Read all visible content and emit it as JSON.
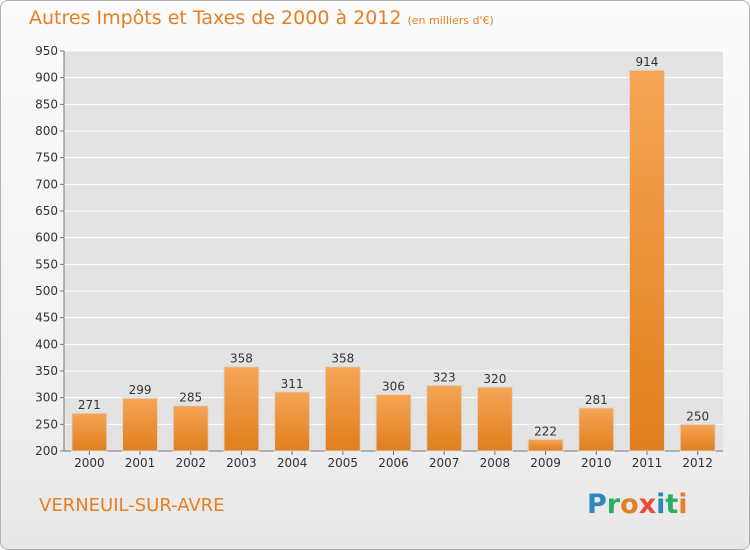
{
  "title": "Autres Impôts et Taxes de 2000 à 2012",
  "subtitle": "(en milliers d'€)",
  "place": "VERNEUIL-SUR-AVRE",
  "logo": {
    "text": "Proxiti",
    "letters": [
      {
        "ch": "P",
        "color": "#2e86c1"
      },
      {
        "ch": "r",
        "color": "#27ae60"
      },
      {
        "ch": "o",
        "color": "#e67e22"
      },
      {
        "ch": "x",
        "color": "#e74c3c"
      },
      {
        "ch": "i",
        "color": "#2e86c1"
      },
      {
        "ch": "t",
        "color": "#27ae60"
      },
      {
        "ch": "i",
        "color": "#e67e22"
      }
    ]
  },
  "colors": {
    "bar_light": "#f6a556",
    "bar_dark": "#e07f1c",
    "grid": "#ffffff",
    "text": "#333333",
    "accent": "#e67e22"
  },
  "chart_data": {
    "type": "bar",
    "categories": [
      "2000",
      "2001",
      "2002",
      "2003",
      "2004",
      "2005",
      "2006",
      "2007",
      "2008",
      "2009",
      "2010",
      "2011",
      "2012"
    ],
    "values": [
      271,
      299,
      285,
      358,
      311,
      358,
      306,
      323,
      320,
      222,
      281,
      914,
      250
    ],
    "ylim": [
      200,
      950
    ],
    "yticks": [
      200,
      250,
      300,
      350,
      400,
      450,
      500,
      550,
      600,
      650,
      700,
      750,
      800,
      850,
      900,
      950
    ],
    "grid": true,
    "data_labels": true
  }
}
